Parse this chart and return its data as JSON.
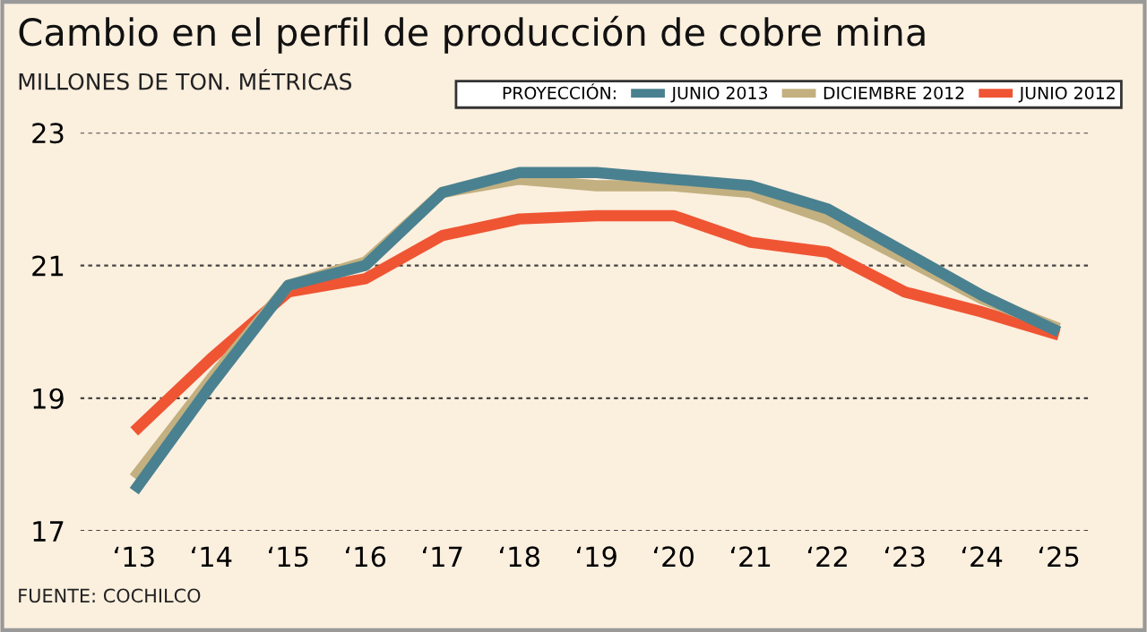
{
  "chart_data": {
    "type": "line",
    "title": "Cambio en el perfil de producción de cobre mina",
    "subtitle": "MILLONES DE TON. MÉTRICAS",
    "legend_title": "PROYECCIÓN:",
    "categories": [
      "‘13",
      "‘14",
      "‘15",
      "‘16",
      "‘17",
      "‘18",
      "‘19",
      "‘20",
      "‘21",
      "‘22",
      "‘23",
      "‘24",
      "‘25"
    ],
    "series": [
      {
        "name": "JUNIO 2013",
        "color": "#4a8190",
        "values": [
          17.6,
          19.2,
          20.7,
          21.0,
          22.1,
          22.4,
          22.4,
          22.3,
          22.2,
          21.85,
          21.2,
          20.55,
          20.0
        ]
      },
      {
        "name": "DICIEMBRE 2012",
        "color": "#c2b080",
        "values": [
          17.8,
          19.3,
          20.7,
          21.05,
          22.1,
          22.3,
          22.2,
          22.2,
          22.1,
          21.7,
          21.1,
          20.5,
          20.05
        ]
      },
      {
        "name": "JUNIO 2012",
        "color": "#ef5533",
        "values": [
          18.5,
          19.6,
          20.6,
          20.8,
          21.45,
          21.7,
          21.75,
          21.75,
          21.35,
          21.2,
          20.6,
          20.3,
          19.95
        ]
      }
    ],
    "ylim": [
      17,
      23
    ],
    "yticks": [
      17,
      19,
      21,
      23
    ],
    "grid": "y",
    "legend": "top right",
    "line_style": "solid",
    "annotations": [
      "FUENTE: COCHILCO"
    ]
  }
}
